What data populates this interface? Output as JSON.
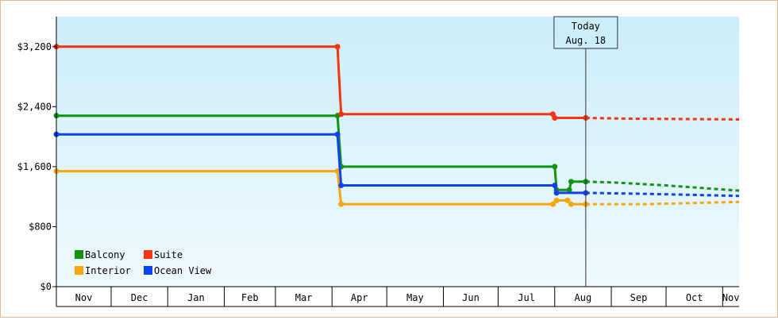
{
  "chart_data": {
    "type": "line",
    "title": "",
    "xlabel": "",
    "ylabel": "",
    "ylim": [
      0,
      3600
    ],
    "y_ticks": [
      {
        "value": 0,
        "label": "$0"
      },
      {
        "value": 800,
        "label": "$800"
      },
      {
        "value": 1600,
        "label": "$1,600"
      },
      {
        "value": 2400,
        "label": "$2,400"
      },
      {
        "value": 3200,
        "label": "$3,200"
      }
    ],
    "x_start": "2020-11-01",
    "x_end": "2021-11-10",
    "x_ticks": [
      {
        "label": "Nov",
        "date": "2020-11-01"
      },
      {
        "label": "Dec",
        "date": "2020-12-01"
      },
      {
        "label": "Jan",
        "date": "2021-01-01"
      },
      {
        "label": "Feb",
        "date": "2021-02-01"
      },
      {
        "label": "Mar",
        "date": "2021-03-01"
      },
      {
        "label": "Apr",
        "date": "2021-04-01"
      },
      {
        "label": "May",
        "date": "2021-05-01"
      },
      {
        "label": "Jun",
        "date": "2021-06-01"
      },
      {
        "label": "Jul",
        "date": "2021-07-01"
      },
      {
        "label": "Aug",
        "date": "2021-08-01"
      },
      {
        "label": "Sep",
        "date": "2021-09-01"
      },
      {
        "label": "Oct",
        "date": "2021-10-01"
      },
      {
        "label": "Nov",
        "date": "2021-11-01"
      }
    ],
    "today": {
      "date": "2021-08-18",
      "label_line1": "Today",
      "label_line2": "Aug. 18"
    },
    "grid": false,
    "legend_position": "bottom-left",
    "series": [
      {
        "name": "Balcony",
        "color": "#129412",
        "points": [
          {
            "x": "2020-11-01",
            "y": 2280
          },
          {
            "x": "2021-04-04",
            "y": 2280
          },
          {
            "x": "2021-04-06",
            "y": 1600
          },
          {
            "x": "2021-08-01",
            "y": 1600
          },
          {
            "x": "2021-08-02",
            "y": 1290
          },
          {
            "x": "2021-08-09",
            "y": 1290
          },
          {
            "x": "2021-08-10",
            "y": 1400
          },
          {
            "x": "2021-08-18",
            "y": 1400
          }
        ],
        "forecast": [
          {
            "x": "2021-08-18",
            "y": 1400
          },
          {
            "x": "2021-09-01",
            "y": 1390
          },
          {
            "x": "2021-10-01",
            "y": 1350
          },
          {
            "x": "2021-11-10",
            "y": 1280
          }
        ]
      },
      {
        "name": "Suite",
        "color": "#f5350f",
        "points": [
          {
            "x": "2020-11-01",
            "y": 3200
          },
          {
            "x": "2021-04-04",
            "y": 3200
          },
          {
            "x": "2021-04-06",
            "y": 2300
          },
          {
            "x": "2021-07-31",
            "y": 2300
          },
          {
            "x": "2021-08-01",
            "y": 2250
          },
          {
            "x": "2021-08-18",
            "y": 2250
          }
        ],
        "forecast": [
          {
            "x": "2021-08-18",
            "y": 2250
          },
          {
            "x": "2021-09-10",
            "y": 2240
          },
          {
            "x": "2021-11-10",
            "y": 2230
          }
        ]
      },
      {
        "name": "Interior",
        "color": "#f6a50f",
        "points": [
          {
            "x": "2020-11-01",
            "y": 1540
          },
          {
            "x": "2021-04-04",
            "y": 1540
          },
          {
            "x": "2021-04-06",
            "y": 1100
          },
          {
            "x": "2021-07-31",
            "y": 1100
          },
          {
            "x": "2021-08-02",
            "y": 1150
          },
          {
            "x": "2021-08-08",
            "y": 1150
          },
          {
            "x": "2021-08-10",
            "y": 1100
          },
          {
            "x": "2021-08-18",
            "y": 1100
          }
        ],
        "forecast": [
          {
            "x": "2021-08-18",
            "y": 1100
          },
          {
            "x": "2021-09-20",
            "y": 1100
          },
          {
            "x": "2021-11-10",
            "y": 1130
          }
        ]
      },
      {
        "name": "Ocean View",
        "color": "#0c43ef",
        "points": [
          {
            "x": "2020-11-01",
            "y": 2030
          },
          {
            "x": "2021-04-04",
            "y": 2030
          },
          {
            "x": "2021-04-06",
            "y": 1350
          },
          {
            "x": "2021-08-01",
            "y": 1350
          },
          {
            "x": "2021-08-02",
            "y": 1250
          },
          {
            "x": "2021-08-18",
            "y": 1250
          }
        ],
        "forecast": [
          {
            "x": "2021-08-18",
            "y": 1250
          },
          {
            "x": "2021-09-15",
            "y": 1240
          },
          {
            "x": "2021-11-10",
            "y": 1210
          }
        ]
      }
    ]
  }
}
